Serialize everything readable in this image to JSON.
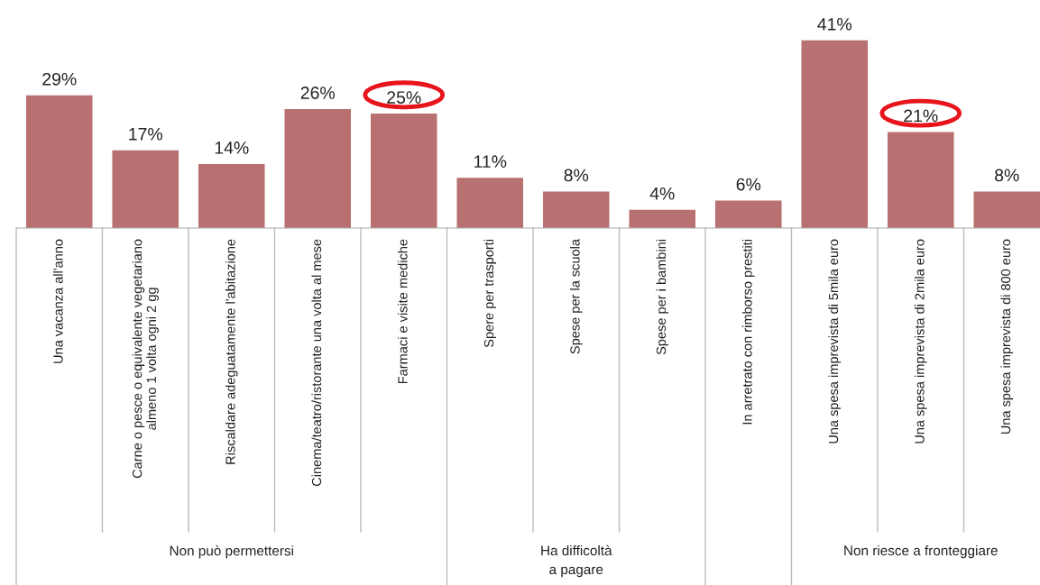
{
  "chart_data": {
    "type": "bar",
    "categories": [
      "Una vacanza all'anno",
      "Carne o pesce o equivalente vegetariano\nalmeno 1 volta ogni 2 gg",
      "Riscaldare adeguatamente l'abitazione",
      "Cinema/teatro/ristorante una volta al mese",
      "Farmaci e visite mediche",
      "Spere per trasporti",
      "Spese per la scuola",
      "Spese per i bambini",
      "In arretrato con rimborso prestiti",
      "Una spesa imprevista di 5mila euro",
      "Una spesa imprevista di 2mila euro",
      "Una spesa imprevista di 800 euro"
    ],
    "values": [
      29,
      17,
      14,
      26,
      25,
      11,
      8,
      4,
      6,
      41,
      21,
      8
    ],
    "value_labels": [
      "29%",
      "17%",
      "14%",
      "26%",
      "25%",
      "11%",
      "8%",
      "4%",
      "6%",
      "41%",
      "21%",
      "8%"
    ],
    "color": "#b87070",
    "annotations": [
      "Non può permettersi",
      "Ha difficoltà\na pagare",
      "Non riesce a fronteggiare"
    ],
    "data_labels": true
  }
}
